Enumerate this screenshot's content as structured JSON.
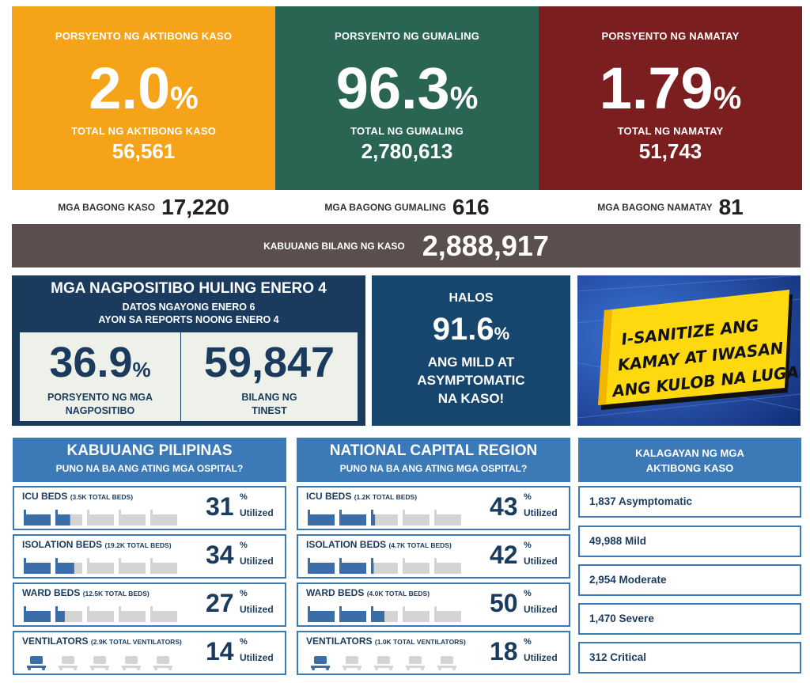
{
  "colors": {
    "active": "#f5a318",
    "recovered": "#2a6553",
    "deaths": "#7a1e1f",
    "total_bar": "#5b4f4d",
    "navy": "#1a3b5d",
    "blue": "#3b79b7"
  },
  "top": {
    "active": {
      "label": "PORSYENTO NG AKTIBONG KASO",
      "pct": "2.0",
      "unit": "%",
      "total_label": "TOTAL NG AKTIBONG KASO",
      "total": "56,561"
    },
    "recovered": {
      "label": "PORSYENTO NG GUMALING",
      "pct": "96.3",
      "unit": "%",
      "total_label": "TOTAL NG GUMALING",
      "total": "2,780,613"
    },
    "deaths": {
      "label": "PORSYENTO NG NAMATAY",
      "pct": "1.79",
      "unit": "%",
      "total_label": "TOTAL NG NAMATAY",
      "total": "51,743"
    }
  },
  "new": {
    "cases": {
      "label": "MGA BAGONG KASO",
      "value": "17,220"
    },
    "recovered": {
      "label": "MGA BAGONG GUMALING",
      "value": "616"
    },
    "deaths": {
      "label": "MGA BAGONG NAMATAY",
      "value": "81"
    }
  },
  "total": {
    "label": "KABUUANG BILANG NG KASO",
    "value": "2,888,917"
  },
  "positivity": {
    "title": "MGA NAGPOSITIBO HULING ENERO 4",
    "sub1": "DATOS NGAYONG ENERO 6",
    "sub2": "AYON SA REPORTS NOONG ENERO 4",
    "rate": "36.9",
    "rate_unit": "%",
    "rate_label1": "PORSYENTO NG MGA",
    "rate_label2": "NAGPOSITIBO",
    "tested": "59,847",
    "tested_label1": "BILANG NG",
    "tested_label2": "TINEST"
  },
  "mild": {
    "pre": "HALOS",
    "value": "91.6",
    "unit": "%",
    "l1": "ANG MILD AT",
    "l2": "ASYMPTOMATIC",
    "l3": "NA KASO!"
  },
  "promo": {
    "l1": "I-SANITIZE ANG",
    "l2": "KAMAY AT IWASAN",
    "l3": "ANG KULOB NA LUGAR"
  },
  "ph": {
    "title": "KABUUANG PILIPINAS",
    "subtitle": "PUNO NA BA ANG ATING MGA OSPITAL?",
    "rows": [
      {
        "name": "ICU BEDS",
        "total": "(3.5K TOTAL BEDS)",
        "pct": "31",
        "utilization": 0.31,
        "icon": "bed-icon"
      },
      {
        "name": "ISOLATION BEDS",
        "total": "(19.2K TOTAL BEDS)",
        "pct": "34",
        "utilization": 0.34,
        "icon": "bed-icon"
      },
      {
        "name": "WARD BEDS",
        "total": "(12.5K TOTAL BEDS)",
        "pct": "27",
        "utilization": 0.27,
        "icon": "bed-icon"
      },
      {
        "name": "VENTILATORS",
        "total": "(2.9K TOTAL VENTILATORS)",
        "pct": "14",
        "utilization": 0.14,
        "icon": "ventilator-icon"
      }
    ]
  },
  "ncr": {
    "title": "NATIONAL CAPITAL REGION",
    "subtitle": "PUNO NA BA ANG ATING MGA OSPITAL?",
    "rows": [
      {
        "name": "ICU BEDS",
        "total": "(1.2K TOTAL BEDS)",
        "pct": "43",
        "utilization": 0.43,
        "icon": "bed-icon"
      },
      {
        "name": "ISOLATION BEDS",
        "total": "(4.7K TOTAL BEDS)",
        "pct": "42",
        "utilization": 0.42,
        "icon": "bed-icon"
      },
      {
        "name": "WARD BEDS",
        "total": "(4.0K TOTAL BEDS)",
        "pct": "50",
        "utilization": 0.5,
        "icon": "bed-icon"
      },
      {
        "name": "VENTILATORS",
        "total": "(1.0K TOTAL VENTILATORS)",
        "pct": "18",
        "utilization": 0.18,
        "icon": "ventilator-icon"
      }
    ]
  },
  "pct_symbol": "%",
  "utilized": "Utilized",
  "status": {
    "title1": "KALAGAYAN NG MGA",
    "title2": "AKTIBONG KASO",
    "items": [
      "1,837 Asymptomatic",
      "49,988 Mild",
      "2,954 Moderate",
      "1,470 Severe",
      "312 Critical"
    ]
  }
}
